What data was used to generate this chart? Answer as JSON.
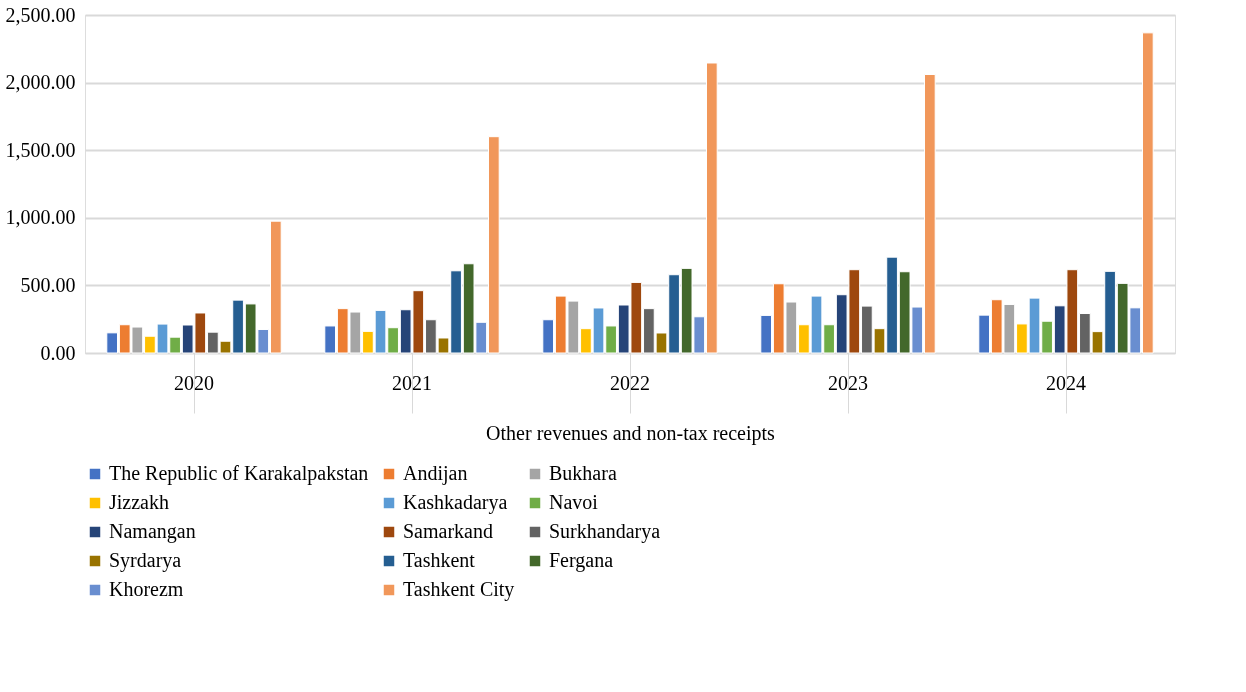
{
  "chart_data": {
    "type": "bar",
    "xlabel": "Other revenues and non-tax receipts",
    "categories": [
      "2020",
      "2021",
      "2022",
      "2023",
      "2024"
    ],
    "ylim": [
      0,
      2500
    ],
    "yticks": [
      {
        "value": 0,
        "label": "0.00"
      },
      {
        "value": 500,
        "label": "500.00"
      },
      {
        "value": 1000,
        "label": "1,000.00"
      },
      {
        "value": 1500,
        "label": "1,500.00"
      },
      {
        "value": 2000,
        "label": "2,000.00"
      },
      {
        "value": 2500,
        "label": "2,500.00"
      }
    ],
    "grid": "y",
    "legend": "bottom",
    "series": [
      {
        "name": "The Republic of Karakalpakstan",
        "color": "#4472c4",
        "values": [
          149,
          200,
          246,
          278,
          280
        ]
      },
      {
        "name": "Andijan",
        "color": "#ed7d31",
        "values": [
          209,
          328,
          421,
          512,
          394
        ]
      },
      {
        "name": "Bukhara",
        "color": "#a5a5a5",
        "values": [
          192,
          303,
          384,
          377,
          359
        ]
      },
      {
        "name": "Jizzakh",
        "color": "#ffc000",
        "values": [
          124,
          160,
          180,
          209,
          215
        ]
      },
      {
        "name": "Kashkadarya",
        "color": "#5b9bd5",
        "values": [
          214,
          315,
          333,
          421,
          406
        ]
      },
      {
        "name": "Navoi",
        "color": "#70ad47",
        "values": [
          117,
          187,
          200,
          209,
          235
        ]
      },
      {
        "name": "Namangan",
        "color": "#264478",
        "values": [
          207,
          320,
          355,
          431,
          349
        ]
      },
      {
        "name": "Samarkand",
        "color": "#9e480e",
        "values": [
          296,
          461,
          522,
          616,
          616
        ]
      },
      {
        "name": "Surkhandarya",
        "color": "#636363",
        "values": [
          154,
          246,
          328,
          347,
          292
        ]
      },
      {
        "name": "Syrdarya",
        "color": "#997300",
        "values": [
          87,
          111,
          148,
          180,
          158
        ]
      },
      {
        "name": "Tashkent",
        "color": "#255e91",
        "values": [
          391,
          608,
          579,
          709,
          604
        ]
      },
      {
        "name": "Fergana",
        "color": "#43682b",
        "values": [
          363,
          660,
          626,
          601,
          515
        ]
      },
      {
        "name": "Khorezm",
        "color": "#698ed0",
        "values": [
          174,
          227,
          268,
          340,
          334
        ]
      },
      {
        "name": "Tashkent City",
        "color": "#f1975a",
        "values": [
          975,
          1600,
          2145,
          2060,
          2368
        ]
      }
    ]
  }
}
